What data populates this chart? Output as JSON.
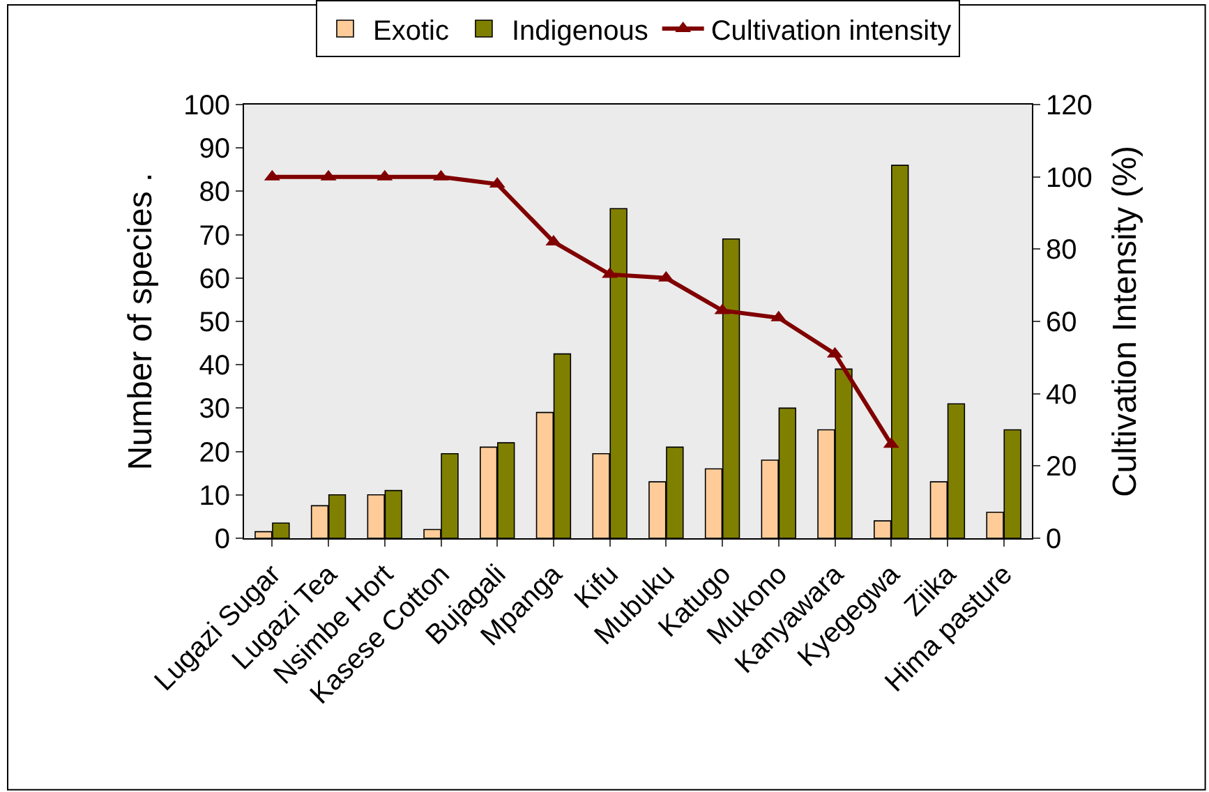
{
  "chart_data": {
    "type": "bar",
    "ylabel": "Number of species .",
    "y2label": "Cultivation Intensity (%)",
    "categories": [
      "Lugazi Sugar",
      "Lugazi Tea",
      "Nsimbe Hort",
      "Kasese Cotton",
      "Bujagali",
      "Mpanga",
      "Kifu",
      "Mubuku",
      "Katugo",
      "Mukono",
      "Kanyawara",
      "Kyegegwa",
      "Ziika",
      "Hima pasture"
    ],
    "series": [
      {
        "name": "Exotic",
        "color": "#ffcc99",
        "values": [
          1.5,
          7.5,
          10,
          2,
          21,
          29,
          19.5,
          13,
          16,
          18,
          25,
          4,
          13,
          6
        ]
      },
      {
        "name": "Indigenous",
        "color": "#808000",
        "values": [
          3.5,
          10,
          11,
          19.5,
          22,
          42.5,
          76,
          21,
          69,
          30,
          39,
          86,
          31,
          25
        ]
      },
      {
        "name": "Cultivation intensity",
        "type": "line",
        "axis": "y2",
        "color": "#800000",
        "marker": "triangle",
        "values": [
          100,
          100,
          100,
          100,
          98,
          82,
          73,
          72,
          63,
          61,
          51,
          26,
          null,
          null
        ]
      }
    ],
    "ylim": [
      0,
      100
    ],
    "yticks": [
      0,
      10,
      20,
      30,
      40,
      50,
      60,
      70,
      80,
      90,
      100
    ],
    "y2lim": [
      0,
      120
    ],
    "y2ticks": [
      0,
      20,
      40,
      60,
      80,
      100,
      120
    ],
    "grid": false,
    "legend": "top"
  }
}
